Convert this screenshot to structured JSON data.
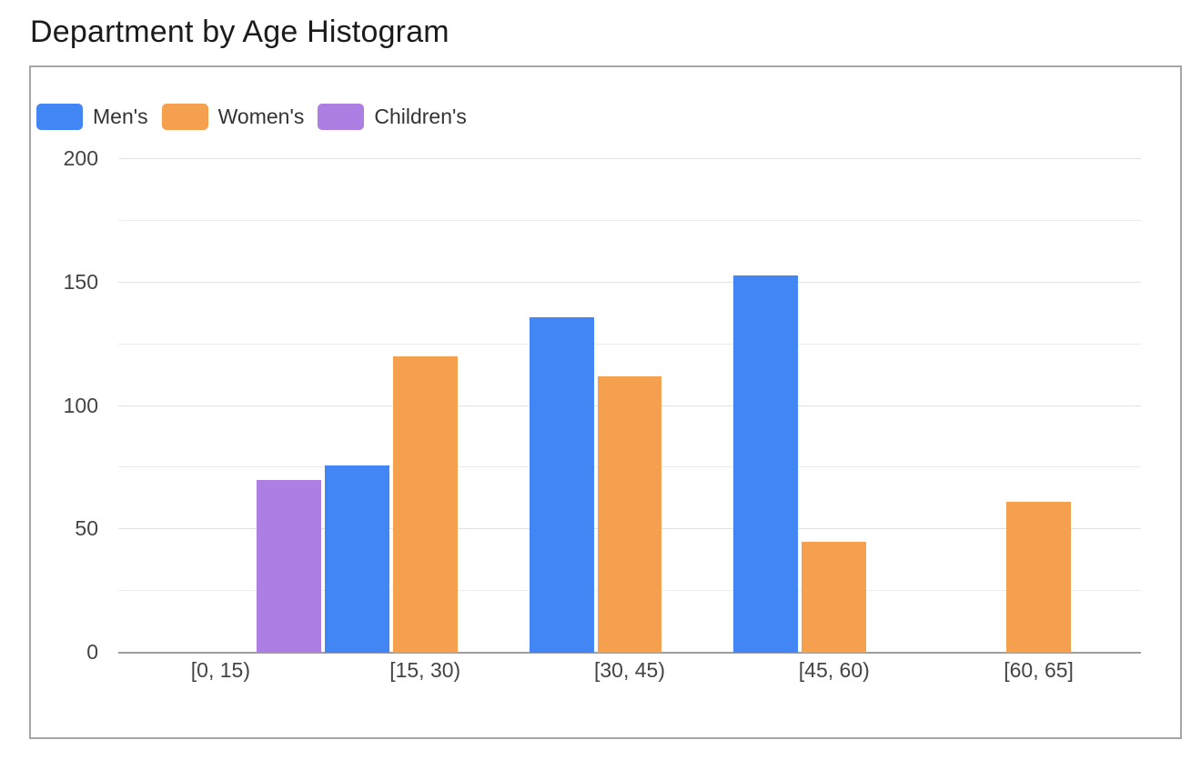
{
  "title": "Department by Age Histogram",
  "chart_data": {
    "type": "bar",
    "title": "Department by Age Histogram",
    "categories": [
      "[0, 15)",
      "[15, 30)",
      "[30, 45)",
      "[45, 60)",
      "[60, 65]"
    ],
    "series": [
      {
        "name": "Men's",
        "color": "#4285F4",
        "values": [
          null,
          76,
          136,
          153,
          null
        ]
      },
      {
        "name": "Women's",
        "color": "#F5A04E",
        "values": [
          null,
          120,
          112,
          45,
          61
        ]
      },
      {
        "name": "Children's",
        "color": "#AE7FE2",
        "values": [
          70,
          null,
          null,
          null,
          null
        ]
      }
    ],
    "xlabel": "",
    "ylabel": "",
    "ylim": [
      0,
      200
    ],
    "yticks": [
      0,
      50,
      100,
      150,
      200
    ],
    "ytick_minor_step": 25,
    "grid": true,
    "legend_position": "top-left",
    "colors": {
      "grid_major": "#e1e1e1",
      "grid_minor": "#ececec",
      "baseline": "#9e9e9e",
      "tick_label": "#444444",
      "title": "#1b1b1b",
      "legend_label": "#333333",
      "card_border": "#a6a6a6"
    }
  }
}
